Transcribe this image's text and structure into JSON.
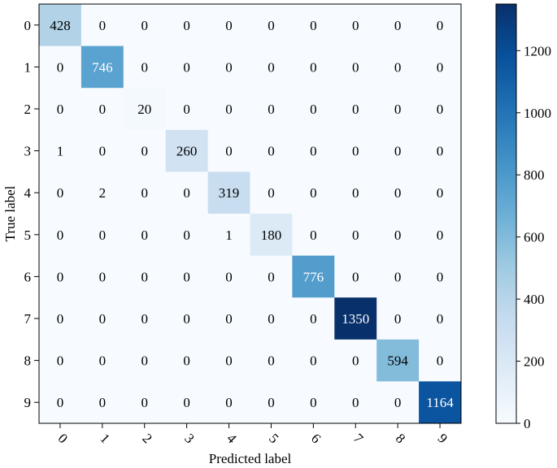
{
  "chart_data": {
    "type": "heatmap",
    "title": "",
    "xlabel": "Predicted label",
    "ylabel": "True label",
    "x_categories": [
      "0",
      "1",
      "2",
      "3",
      "4",
      "5",
      "6",
      "7",
      "8",
      "9"
    ],
    "y_categories": [
      "0",
      "1",
      "2",
      "3",
      "4",
      "5",
      "6",
      "7",
      "8",
      "9"
    ],
    "matrix": [
      [
        428,
        0,
        0,
        0,
        0,
        0,
        0,
        0,
        0,
        0
      ],
      [
        0,
        746,
        0,
        0,
        0,
        0,
        0,
        0,
        0,
        0
      ],
      [
        0,
        0,
        20,
        0,
        0,
        0,
        0,
        0,
        0,
        0
      ],
      [
        1,
        0,
        0,
        260,
        0,
        0,
        0,
        0,
        0,
        0
      ],
      [
        0,
        2,
        0,
        0,
        319,
        0,
        0,
        0,
        0,
        0
      ],
      [
        0,
        0,
        0,
        0,
        1,
        180,
        0,
        0,
        0,
        0
      ],
      [
        0,
        0,
        0,
        0,
        0,
        0,
        776,
        0,
        0,
        0
      ],
      [
        0,
        0,
        0,
        0,
        0,
        0,
        0,
        1350,
        0,
        0
      ],
      [
        0,
        0,
        0,
        0,
        0,
        0,
        0,
        0,
        594,
        0
      ],
      [
        0,
        0,
        0,
        0,
        0,
        0,
        0,
        0,
        0,
        1164
      ]
    ],
    "colormap": "Blues",
    "colormap_low": "#f7fbff",
    "colormap_high": "#08306b",
    "colorbar": {
      "vmin": 0,
      "vmax": 1350,
      "ticks": [
        0,
        200,
        400,
        600,
        800,
        1000,
        1200
      ],
      "position": "right"
    },
    "x_tick_rotation": "45 degrees",
    "grid": false
  }
}
